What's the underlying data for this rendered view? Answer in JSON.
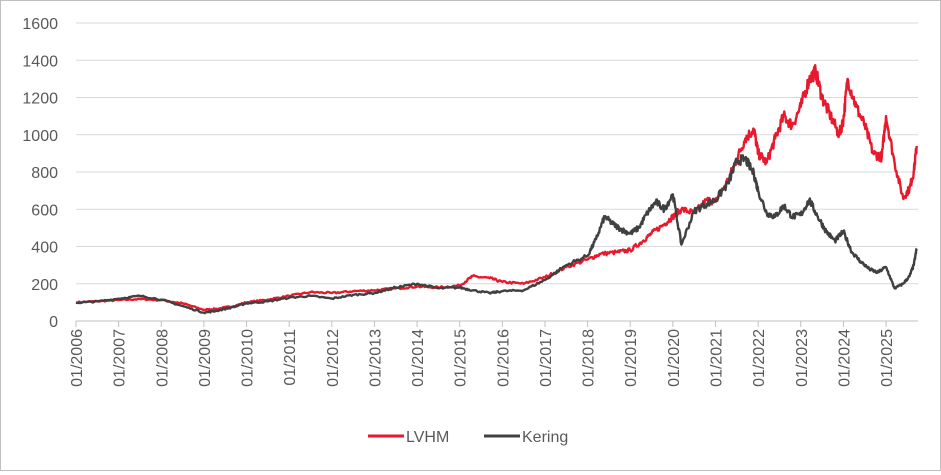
{
  "chart_data": {
    "type": "line",
    "title": "",
    "xlabel": "",
    "ylabel": "",
    "ylim": [
      0,
      1600
    ],
    "yticks": [
      0,
      200,
      400,
      600,
      800,
      1000,
      1200,
      1400,
      1600
    ],
    "x_tick_labels": [
      "01/2006",
      "01/2007",
      "01/2008",
      "01/2009",
      "01/2010",
      "01/2011",
      "01/2012",
      "01/2013",
      "01/2014",
      "01/2015",
      "01/2016",
      "01/2017",
      "01/2018",
      "01/2019",
      "01/2020",
      "01/2021",
      "01/2022",
      "01/2023",
      "01/2024",
      "01/2025"
    ],
    "xlim": [
      2006.0,
      2025.75
    ],
    "grid": "horizontal",
    "legend": "bottom-center",
    "series": [
      {
        "name": "LVHM",
        "color": "#e8192c",
        "points": [
          [
            2006.0,
            100
          ],
          [
            2006.5,
            106
          ],
          [
            2007.0,
            112
          ],
          [
            2007.5,
            118
          ],
          [
            2008.0,
            112
          ],
          [
            2008.5,
            95
          ],
          [
            2009.0,
            60
          ],
          [
            2009.3,
            65
          ],
          [
            2009.7,
            80
          ],
          [
            2010.0,
            100
          ],
          [
            2010.5,
            115
          ],
          [
            2011.0,
            135
          ],
          [
            2011.5,
            155
          ],
          [
            2012.0,
            150
          ],
          [
            2012.5,
            160
          ],
          [
            2013.0,
            165
          ],
          [
            2013.5,
            175
          ],
          [
            2014.0,
            185
          ],
          [
            2014.5,
            180
          ],
          [
            2015.0,
            190
          ],
          [
            2015.3,
            240
          ],
          [
            2015.7,
            230
          ],
          [
            2016.0,
            210
          ],
          [
            2016.5,
            200
          ],
          [
            2017.0,
            235
          ],
          [
            2017.5,
            290
          ],
          [
            2018.0,
            330
          ],
          [
            2018.3,
            360
          ],
          [
            2018.7,
            370
          ],
          [
            2019.0,
            380
          ],
          [
            2019.3,
            430
          ],
          [
            2019.5,
            470
          ],
          [
            2019.8,
            520
          ],
          [
            2020.0,
            560
          ],
          [
            2020.2,
            600
          ],
          [
            2020.5,
            580
          ],
          [
            2020.8,
            650
          ],
          [
            2021.0,
            640
          ],
          [
            2021.3,
            760
          ],
          [
            2021.5,
            870
          ],
          [
            2021.7,
            980
          ],
          [
            2021.9,
            1030
          ],
          [
            2022.0,
            900
          ],
          [
            2022.2,
            850
          ],
          [
            2022.4,
            980
          ],
          [
            2022.6,
            1100
          ],
          [
            2022.8,
            1050
          ],
          [
            2023.0,
            1150
          ],
          [
            2023.2,
            1300
          ],
          [
            2023.35,
            1340
          ],
          [
            2023.5,
            1200
          ],
          [
            2023.7,
            1100
          ],
          [
            2023.9,
            1000
          ],
          [
            2024.0,
            1080
          ],
          [
            2024.1,
            1300
          ],
          [
            2024.3,
            1150
          ],
          [
            2024.5,
            1050
          ],
          [
            2024.7,
            900
          ],
          [
            2024.9,
            880
          ],
          [
            2025.0,
            1100
          ],
          [
            2025.2,
            850
          ],
          [
            2025.4,
            660
          ],
          [
            2025.55,
            710
          ],
          [
            2025.65,
            800
          ],
          [
            2025.72,
            940
          ]
        ]
      },
      {
        "name": "Kering",
        "color": "#404040",
        "points": [
          [
            2006.0,
            98
          ],
          [
            2006.5,
            105
          ],
          [
            2007.0,
            120
          ],
          [
            2007.5,
            135
          ],
          [
            2008.0,
            115
          ],
          [
            2008.5,
            80
          ],
          [
            2009.0,
            45
          ],
          [
            2009.3,
            55
          ],
          [
            2009.7,
            75
          ],
          [
            2010.0,
            95
          ],
          [
            2010.5,
            105
          ],
          [
            2011.0,
            125
          ],
          [
            2011.5,
            135
          ],
          [
            2012.0,
            120
          ],
          [
            2012.5,
            140
          ],
          [
            2013.0,
            150
          ],
          [
            2013.5,
            180
          ],
          [
            2014.0,
            200
          ],
          [
            2014.5,
            175
          ],
          [
            2015.0,
            180
          ],
          [
            2015.3,
            165
          ],
          [
            2015.7,
            150
          ],
          [
            2016.0,
            160
          ],
          [
            2016.5,
            165
          ],
          [
            2017.0,
            220
          ],
          [
            2017.5,
            300
          ],
          [
            2018.0,
            350
          ],
          [
            2018.2,
            440
          ],
          [
            2018.4,
            560
          ],
          [
            2018.6,
            520
          ],
          [
            2018.8,
            490
          ],
          [
            2019.0,
            470
          ],
          [
            2019.2,
            500
          ],
          [
            2019.4,
            580
          ],
          [
            2019.6,
            640
          ],
          [
            2019.8,
            600
          ],
          [
            2020.0,
            680
          ],
          [
            2020.2,
            410
          ],
          [
            2020.5,
            590
          ],
          [
            2020.8,
            630
          ],
          [
            2021.0,
            650
          ],
          [
            2021.3,
            740
          ],
          [
            2021.5,
            860
          ],
          [
            2021.7,
            870
          ],
          [
            2021.9,
            790
          ],
          [
            2022.0,
            700
          ],
          [
            2022.2,
            580
          ],
          [
            2022.4,
            560
          ],
          [
            2022.6,
            620
          ],
          [
            2022.8,
            560
          ],
          [
            2023.0,
            570
          ],
          [
            2023.2,
            650
          ],
          [
            2023.4,
            560
          ],
          [
            2023.6,
            480
          ],
          [
            2023.8,
            430
          ],
          [
            2024.0,
            480
          ],
          [
            2024.2,
            370
          ],
          [
            2024.4,
            320
          ],
          [
            2024.6,
            280
          ],
          [
            2024.8,
            260
          ],
          [
            2025.0,
            290
          ],
          [
            2025.2,
            175
          ],
          [
            2025.4,
            200
          ],
          [
            2025.55,
            240
          ],
          [
            2025.65,
            300
          ],
          [
            2025.72,
            390
          ]
        ]
      }
    ]
  }
}
